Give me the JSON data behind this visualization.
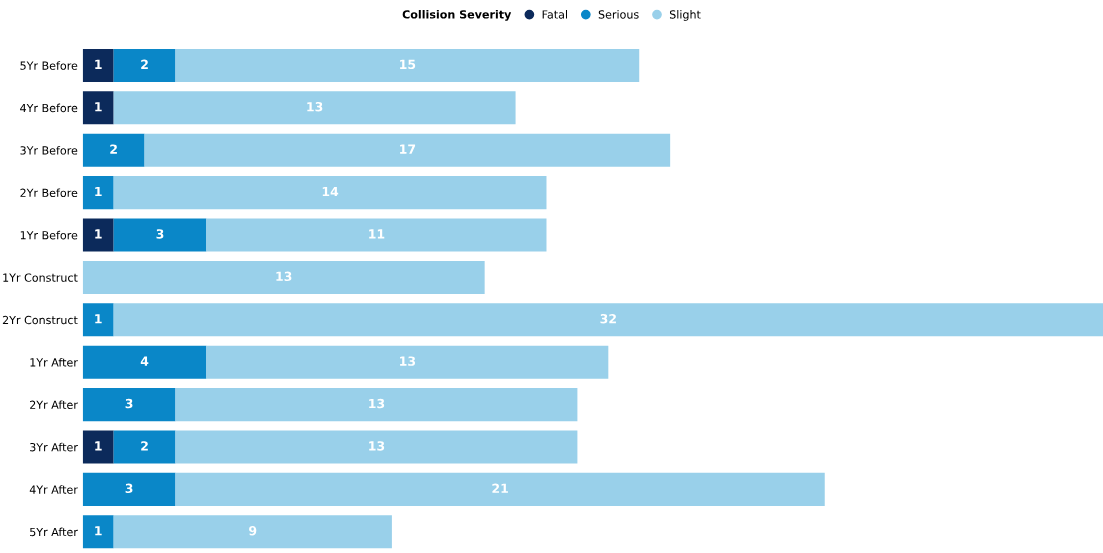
{
  "chart_data": {
    "type": "bar",
    "orientation": "horizontal",
    "stacked": true,
    "data_labels": true,
    "legend": "top",
    "legend_title": "Collision Severity",
    "tick_labels": "y",
    "grid": false,
    "categories": [
      "5Yr Before",
      "4Yr Before",
      "3Yr Before",
      "2Yr Before",
      "1Yr Before",
      "1Yr Construct",
      "2Yr Construct",
      "1Yr After",
      "2Yr After",
      "3Yr After",
      "4Yr After",
      "5Yr After"
    ],
    "series": [
      {
        "name": "Fatal",
        "color": "#0c2a5b",
        "values": [
          1,
          1,
          null,
          null,
          1,
          null,
          null,
          null,
          null,
          1,
          null,
          null
        ]
      },
      {
        "name": "Serious",
        "color": "#0a87c8",
        "values": [
          2,
          null,
          2,
          1,
          3,
          null,
          1,
          4,
          3,
          2,
          3,
          1
        ]
      },
      {
        "name": "Slight",
        "color": "#99d0ea",
        "values": [
          15,
          13,
          17,
          14,
          11,
          13,
          32,
          13,
          13,
          13,
          21,
          9
        ]
      }
    ]
  }
}
